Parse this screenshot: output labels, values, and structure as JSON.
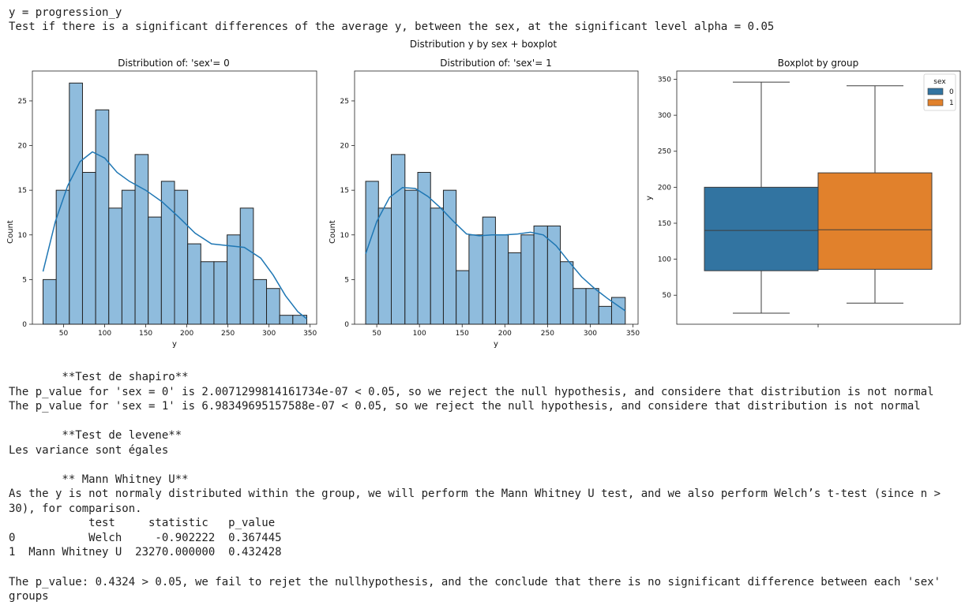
{
  "header": {
    "line1": "y = progression_y",
    "line2": "Test if there is a significant differences of the average y, between the sex, at the significant level alpha = 0.05"
  },
  "figure": {
    "suptitle": "Distribution y by sex + boxplot"
  },
  "colors": {
    "hist_fill": "#8fbcdd",
    "kde_line": "#1f77b4",
    "box_0": "#3274a1",
    "box_1": "#e1812c"
  },
  "chart_data": [
    {
      "type": "bar",
      "title": "Distribution of: 'sex'= 0",
      "xlabel": "y",
      "ylabel": "Count",
      "xlim": [
        12,
        358
      ],
      "ylim": [
        0,
        28.35
      ],
      "xticks": [
        50,
        100,
        150,
        200,
        250,
        300,
        350
      ],
      "yticks": [
        0,
        5,
        10,
        15,
        20,
        25
      ],
      "bins": [
        {
          "x0": 25,
          "x1": 41,
          "count": 5
        },
        {
          "x0": 41,
          "x1": 57,
          "count": 15
        },
        {
          "x0": 57,
          "x1": 73,
          "count": 27
        },
        {
          "x0": 73,
          "x1": 89,
          "count": 17
        },
        {
          "x0": 89,
          "x1": 105,
          "count": 24
        },
        {
          "x0": 105,
          "x1": 121,
          "count": 13
        },
        {
          "x0": 121,
          "x1": 137,
          "count": 15
        },
        {
          "x0": 137,
          "x1": 153,
          "count": 19
        },
        {
          "x0": 153,
          "x1": 169,
          "count": 12
        },
        {
          "x0": 169,
          "x1": 185,
          "count": 16
        },
        {
          "x0": 185,
          "x1": 201,
          "count": 15
        },
        {
          "x0": 201,
          "x1": 217,
          "count": 9
        },
        {
          "x0": 217,
          "x1": 233,
          "count": 7
        },
        {
          "x0": 233,
          "x1": 249,
          "count": 7
        },
        {
          "x0": 249,
          "x1": 265,
          "count": 10
        },
        {
          "x0": 265,
          "x1": 281,
          "count": 13
        },
        {
          "x0": 281,
          "x1": 297,
          "count": 5
        },
        {
          "x0": 297,
          "x1": 313,
          "count": 4
        },
        {
          "x0": 313,
          "x1": 329,
          "count": 1
        },
        {
          "x0": 329,
          "x1": 346,
          "count": 1
        }
      ],
      "kde": [
        [
          25,
          5.9
        ],
        [
          40,
          11.5
        ],
        [
          55,
          15.5
        ],
        [
          70,
          18.2
        ],
        [
          85,
          19.3
        ],
        [
          100,
          18.6
        ],
        [
          115,
          17
        ],
        [
          130,
          16
        ],
        [
          150,
          15
        ],
        [
          170,
          13.7
        ],
        [
          190,
          12
        ],
        [
          210,
          10.2
        ],
        [
          230,
          9
        ],
        [
          250,
          8.8
        ],
        [
          270,
          8.6
        ],
        [
          290,
          7.4
        ],
        [
          305,
          5.5
        ],
        [
          320,
          3.2
        ],
        [
          335,
          1.4
        ],
        [
          346,
          0.6
        ]
      ]
    },
    {
      "type": "bar",
      "title": "Distribution of: 'sex'= 1",
      "xlabel": "y",
      "ylabel": "Count",
      "xlim": [
        24,
        356
      ],
      "ylim": [
        0,
        28.35
      ],
      "xticks": [
        50,
        100,
        150,
        200,
        250,
        300,
        350
      ],
      "yticks": [
        0,
        5,
        10,
        15,
        20,
        25
      ],
      "bins": [
        {
          "x0": 37,
          "x1": 52,
          "count": 16
        },
        {
          "x0": 52,
          "x1": 67,
          "count": 13
        },
        {
          "x0": 67,
          "x1": 83,
          "count": 19
        },
        {
          "x0": 83,
          "x1": 98,
          "count": 15
        },
        {
          "x0": 98,
          "x1": 113,
          "count": 17
        },
        {
          "x0": 113,
          "x1": 128,
          "count": 13
        },
        {
          "x0": 128,
          "x1": 143,
          "count": 15
        },
        {
          "x0": 143,
          "x1": 158,
          "count": 6
        },
        {
          "x0": 158,
          "x1": 174,
          "count": 10
        },
        {
          "x0": 174,
          "x1": 189,
          "count": 12
        },
        {
          "x0": 189,
          "x1": 204,
          "count": 10
        },
        {
          "x0": 204,
          "x1": 219,
          "count": 8
        },
        {
          "x0": 219,
          "x1": 234,
          "count": 10
        },
        {
          "x0": 234,
          "x1": 250,
          "count": 11
        },
        {
          "x0": 250,
          "x1": 265,
          "count": 11
        },
        {
          "x0": 265,
          "x1": 280,
          "count": 7
        },
        {
          "x0": 280,
          "x1": 295,
          "count": 4
        },
        {
          "x0": 295,
          "x1": 310,
          "count": 4
        },
        {
          "x0": 310,
          "x1": 325,
          "count": 2
        },
        {
          "x0": 325,
          "x1": 341,
          "count": 3
        }
      ],
      "kde": [
        [
          37,
          7.9
        ],
        [
          50,
          11.5
        ],
        [
          65,
          14.2
        ],
        [
          80,
          15.3
        ],
        [
          95,
          15.2
        ],
        [
          110,
          14.3
        ],
        [
          125,
          13
        ],
        [
          140,
          11.5
        ],
        [
          155,
          10.1
        ],
        [
          170,
          9.9
        ],
        [
          185,
          10
        ],
        [
          200,
          10
        ],
        [
          215,
          10.1
        ],
        [
          230,
          10.3
        ],
        [
          245,
          10
        ],
        [
          260,
          8.8
        ],
        [
          275,
          7
        ],
        [
          290,
          5.3
        ],
        [
          305,
          4
        ],
        [
          320,
          2.9
        ],
        [
          341,
          1.5
        ]
      ]
    },
    {
      "type": "box",
      "title": "Boxplot by group",
      "ylabel": "y",
      "ylim": [
        9.7,
        361.5
      ],
      "yticks": [
        50,
        100,
        150,
        200,
        250,
        300,
        350
      ],
      "legend": {
        "title": "sex",
        "position": "upper right",
        "labels": [
          "0",
          "1"
        ]
      },
      "groups": [
        {
          "label": "0",
          "whisker_low": 25,
          "q1": 84,
          "median": 140,
          "q3": 200,
          "whisker_high": 346
        },
        {
          "label": "1",
          "whisker_low": 39,
          "q1": 86,
          "median": 141,
          "q3": 220,
          "whisker_high": 341
        }
      ]
    }
  ],
  "output": {
    "shapiro_title": "        **Test de shapiro**",
    "shapiro_1": "The p_value for 'sex = 0' is 2.0071299814161734e-07 < 0.05, so we reject the null hypothesis, and considere that distribution is not normal",
    "shapiro_2": "The p_value for 'sex = 1' is 6.98349695157588e-07 < 0.05, so we reject the null hypothesis, and considere that distribution is not normal",
    "levene_title": "        **Test de levene**",
    "levene_1": "Les variance sont égales",
    "mw_title": "        ** Mann Whitney U**",
    "mw_1": "As the y is not normaly distributed within the group, we will perform the Mann Whitney U test, and we also perform Welch’s t-test (since n >",
    "mw_2": "30), for comparison.",
    "table": {
      "header": "            test     statistic   p_value",
      "rows": [
        "0           Welch     -0.902222  0.367445",
        "1  Mann Whitney U  23270.000000  0.432428"
      ]
    },
    "conclusion_1": "The p_value: 0.4324 > 0.05, we fail to rejet the nullhypothesis, and the conclude that there is no significant difference between each 'sex'",
    "conclusion_2": "groups"
  }
}
